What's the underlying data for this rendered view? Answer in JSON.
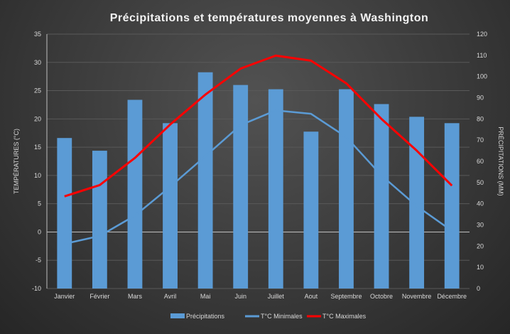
{
  "chart_data": {
    "type": "bar+line",
    "title": "Précipitations et températures moyennes à Washington",
    "ylabel_left": "TEMPÉRATURES (°C)",
    "ylabel_right": "PRÉCIPITATIONS (MM)",
    "ylim_left": [
      -10,
      35
    ],
    "yticks_left": [
      -10,
      -5,
      0,
      5,
      10,
      15,
      20,
      25,
      30,
      35
    ],
    "ylim_right": [
      0,
      120
    ],
    "yticks_right": [
      0,
      10,
      20,
      30,
      40,
      50,
      60,
      70,
      80,
      90,
      100,
      110,
      120
    ],
    "grid": true,
    "legend_position": "bottom",
    "categories": [
      "Janvier",
      "Février",
      "Mars",
      "Avril",
      "Mai",
      "Juin",
      "Juillet",
      "Aout",
      "Septembre",
      "Octobre",
      "Novembre",
      "Décembre"
    ],
    "series": [
      {
        "name": "Précipitations",
        "type": "bar",
        "axis": "right",
        "color": "#5b9bd5",
        "values": [
          71,
          65,
          89,
          78,
          102,
          96,
          94,
          74,
          94,
          87,
          81,
          78
        ]
      },
      {
        "name": "T°C Minimales",
        "type": "line",
        "axis": "left",
        "color": "#5b9bd5",
        "values": [
          -2.1,
          -0.7,
          2.9,
          8.0,
          13.4,
          18.9,
          21.5,
          20.9,
          16.8,
          10.0,
          4.6,
          0.2
        ]
      },
      {
        "name": "T°C Maximales",
        "type": "line",
        "axis": "left",
        "color": "#ff0000",
        "values": [
          6.3,
          8.3,
          13.1,
          19.0,
          24.3,
          28.9,
          31.2,
          30.3,
          26.3,
          20.0,
          14.4,
          8.2
        ]
      }
    ]
  }
}
